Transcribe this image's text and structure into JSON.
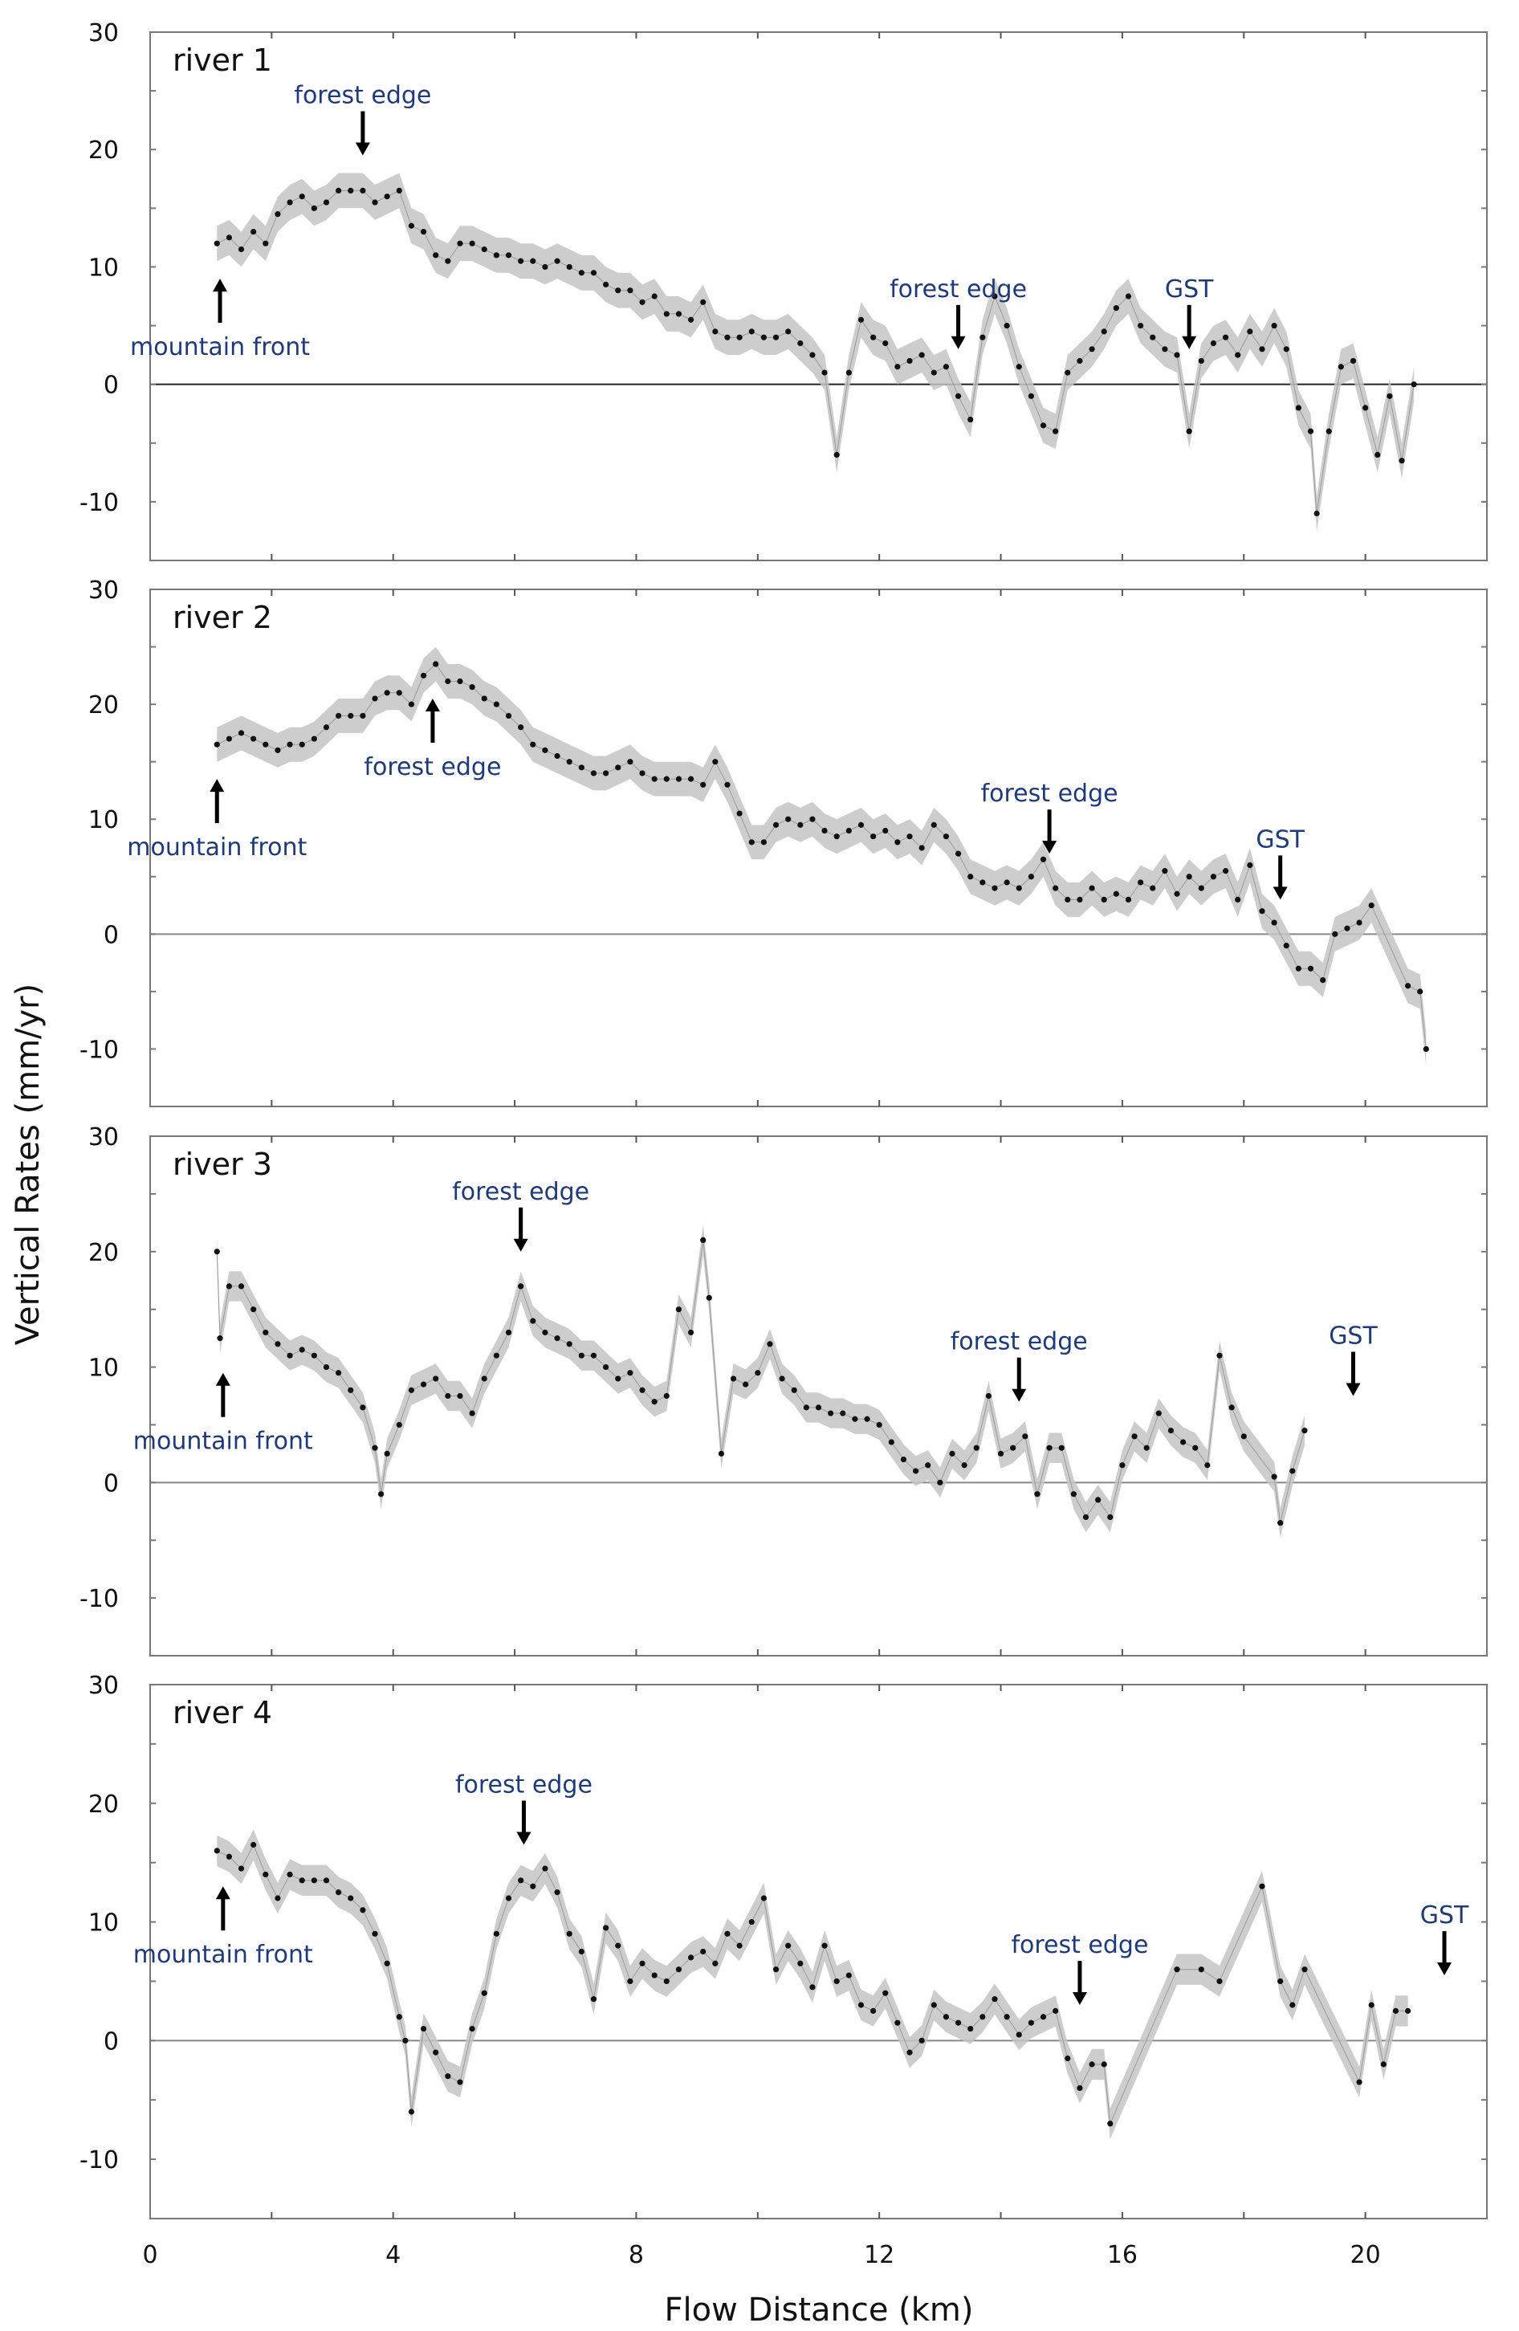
{
  "chart_data": {
    "type": "line",
    "xlabel": "Flow Distance (km)",
    "ylabel": "Vertical Rates (mm/yr)",
    "xlim": [
      0,
      22
    ],
    "ylim": [
      -15,
      30
    ],
    "x_ticks": [
      0,
      4,
      8,
      12,
      16,
      20
    ],
    "x_minor_ticks": [
      2,
      6,
      10,
      14,
      18
    ],
    "y_ticks": [
      -10,
      0,
      10,
      20,
      30
    ],
    "y_minor_ticks": [
      -5,
      5,
      15,
      25
    ],
    "grid": false,
    "zero_line": true,
    "colors": {
      "points": "#111111",
      "band": "#bdbdbd",
      "annotation": "#1f3a7a",
      "arrow": "#000000"
    },
    "panels": [
      {
        "title": "river 1",
        "uncertainty_band_halfwidth": 1.5,
        "annotations": [
          {
            "label": "mountain front",
            "x": 1.15,
            "direction": "up",
            "label_position": "below"
          },
          {
            "label": "forest edge",
            "x": 3.5,
            "direction": "down",
            "label_position": "above"
          },
          {
            "label": "forest edge",
            "x": 13.3,
            "direction": "down",
            "label_position": "above"
          },
          {
            "label": "GST",
            "x": 17.1,
            "direction": "down",
            "label_position": "above"
          }
        ],
        "series": {
          "x": [
            1.1,
            1.3,
            1.5,
            1.7,
            1.9,
            2.1,
            2.3,
            2.5,
            2.7,
            2.9,
            3.1,
            3.3,
            3.5,
            3.7,
            3.9,
            4.1,
            4.3,
            4.5,
            4.7,
            4.9,
            5.1,
            5.3,
            5.5,
            5.7,
            5.9,
            6.1,
            6.3,
            6.5,
            6.7,
            6.9,
            7.1,
            7.3,
            7.5,
            7.7,
            7.9,
            8.1,
            8.3,
            8.5,
            8.7,
            8.9,
            9.1,
            9.3,
            9.5,
            9.7,
            9.9,
            10.1,
            10.3,
            10.5,
            10.7,
            10.9,
            11.1,
            11.3,
            11.5,
            11.7,
            11.9,
            12.1,
            12.3,
            12.5,
            12.7,
            12.9,
            13.1,
            13.3,
            13.5,
            13.7,
            13.9,
            14.1,
            14.3,
            14.5,
            14.7,
            14.9,
            15.1,
            15.3,
            15.5,
            15.7,
            15.9,
            16.1,
            16.3,
            16.5,
            16.7,
            16.9,
            17.1,
            17.3,
            17.5,
            17.7,
            17.9,
            18.1,
            18.3,
            18.5,
            18.7,
            18.9,
            19.1,
            19.2,
            19.4,
            19.6,
            19.8,
            20.0,
            20.2,
            20.4,
            20.6,
            20.8
          ],
          "y": [
            12,
            12.5,
            11.5,
            13,
            12,
            14.5,
            15.5,
            16,
            15,
            15.5,
            16.5,
            16.5,
            16.5,
            15.5,
            16,
            16.5,
            13.5,
            13,
            11,
            10.5,
            12,
            12,
            11.5,
            11,
            11,
            10.5,
            10.5,
            10,
            10.5,
            10,
            9.5,
            9.5,
            8.5,
            8,
            8,
            7,
            7.5,
            6,
            6,
            5.5,
            7,
            4.5,
            4,
            4,
            4.5,
            4,
            4,
            4.5,
            3.5,
            2.5,
            1,
            -6,
            1,
            5.5,
            4,
            3.5,
            1.5,
            2,
            2.5,
            1,
            1.5,
            -1,
            -3,
            4,
            7.5,
            5,
            1.5,
            -1,
            -3.5,
            -4,
            1,
            2,
            3,
            4.5,
            6.5,
            7.5,
            5,
            4,
            3,
            2.5,
            -4,
            2,
            3.5,
            4,
            2.5,
            4.5,
            3,
            5,
            3,
            -2,
            -4,
            -11,
            -4,
            1.5,
            2,
            -2,
            -6,
            -1,
            -6.5,
            0
          ]
        }
      },
      {
        "title": "river 2",
        "uncertainty_band_halfwidth": 1.5,
        "annotations": [
          {
            "label": "mountain front",
            "x": 1.1,
            "direction": "up",
            "label_position": "below"
          },
          {
            "label": "forest edge",
            "x": 4.65,
            "direction": "up",
            "label_position": "below"
          },
          {
            "label": "forest edge",
            "x": 14.8,
            "direction": "down",
            "label_position": "above"
          },
          {
            "label": "GST",
            "x": 18.6,
            "direction": "down",
            "label_position": "above"
          }
        ],
        "series": {
          "x": [
            1.1,
            1.3,
            1.5,
            1.7,
            1.9,
            2.1,
            2.3,
            2.5,
            2.7,
            2.9,
            3.1,
            3.3,
            3.5,
            3.7,
            3.9,
            4.1,
            4.3,
            4.5,
            4.7,
            4.9,
            5.1,
            5.3,
            5.5,
            5.7,
            5.9,
            6.1,
            6.3,
            6.5,
            6.7,
            6.9,
            7.1,
            7.3,
            7.5,
            7.7,
            7.9,
            8.1,
            8.3,
            8.5,
            8.7,
            8.9,
            9.1,
            9.3,
            9.5,
            9.7,
            9.9,
            10.1,
            10.3,
            10.5,
            10.7,
            10.9,
            11.1,
            11.3,
            11.5,
            11.7,
            11.9,
            12.1,
            12.3,
            12.5,
            12.7,
            12.9,
            13.1,
            13.3,
            13.5,
            13.7,
            13.9,
            14.1,
            14.3,
            14.5,
            14.7,
            14.9,
            15.1,
            15.3,
            15.5,
            15.7,
            15.9,
            16.1,
            16.3,
            16.5,
            16.7,
            16.9,
            17.1,
            17.3,
            17.5,
            17.7,
            17.9,
            18.1,
            18.3,
            18.5,
            18.7,
            18.9,
            19.1,
            19.3,
            19.5,
            19.7,
            19.9,
            20.1,
            20.7,
            20.9,
            21.0
          ],
          "y": [
            16.5,
            17,
            17.5,
            17,
            16.5,
            16,
            16.5,
            16.5,
            17,
            18,
            19,
            19,
            19,
            20.5,
            21,
            21,
            20,
            22.5,
            23.5,
            22,
            22,
            21.5,
            20.5,
            20,
            19,
            18,
            16.5,
            16,
            15.5,
            15,
            14.5,
            14,
            14,
            14.5,
            15,
            14,
            13.5,
            13.5,
            13.5,
            13.5,
            13,
            15,
            13,
            10.5,
            8,
            8,
            9.5,
            10,
            9.5,
            10,
            9,
            8.5,
            9,
            9.5,
            8.5,
            9,
            8,
            8.5,
            7.5,
            9.5,
            8.5,
            7,
            5,
            4.5,
            4,
            4.5,
            4,
            5,
            6.5,
            4,
            3,
            3,
            4,
            3,
            3.5,
            3,
            4.5,
            4,
            5.5,
            3.5,
            5,
            4,
            5,
            5.5,
            3,
            6,
            2,
            1,
            -1,
            -3,
            -3,
            -4,
            0,
            0.5,
            1,
            2.5,
            -4.5,
            -5,
            -10
          ]
        }
      },
      {
        "title": "river 3",
        "uncertainty_band_halfwidth": 1.3,
        "annotations": [
          {
            "label": "mountain front",
            "x": 1.2,
            "direction": "up",
            "label_position": "below"
          },
          {
            "label": "forest edge",
            "x": 6.1,
            "direction": "down",
            "label_position": "above"
          },
          {
            "label": "forest edge",
            "x": 14.3,
            "direction": "down",
            "label_position": "above"
          },
          {
            "label": "GST",
            "x": 19.8,
            "direction": "down",
            "label_position": "above"
          }
        ],
        "series": {
          "x": [
            1.1,
            1.15,
            1.3,
            1.5,
            1.7,
            1.9,
            2.1,
            2.3,
            2.5,
            2.7,
            2.9,
            3.1,
            3.3,
            3.5,
            3.7,
            3.8,
            3.9,
            4.1,
            4.3,
            4.5,
            4.7,
            4.9,
            5.1,
            5.3,
            5.5,
            5.7,
            5.9,
            6.1,
            6.3,
            6.5,
            6.7,
            6.9,
            7.1,
            7.3,
            7.5,
            7.7,
            7.9,
            8.1,
            8.3,
            8.5,
            8.7,
            8.9,
            9.1,
            9.2,
            9.4,
            9.6,
            9.8,
            10.0,
            10.2,
            10.4,
            10.6,
            10.8,
            11.0,
            11.2,
            11.4,
            11.6,
            11.8,
            12.0,
            12.2,
            12.4,
            12.6,
            12.8,
            13.0,
            13.2,
            13.4,
            13.6,
            13.8,
            14.0,
            14.2,
            14.4,
            14.6,
            14.8,
            15.0,
            15.2,
            15.4,
            15.6,
            15.8,
            16.0,
            16.2,
            16.4,
            16.6,
            16.8,
            17.0,
            17.2,
            17.4,
            17.6,
            17.8,
            18.0,
            18.5,
            18.6,
            18.8,
            19.0
          ],
          "y": [
            20,
            12.5,
            17,
            17,
            15,
            13,
            12,
            11,
            11.5,
            11,
            10,
            9.5,
            8,
            6.5,
            3,
            -1,
            2.5,
            5,
            8,
            8.5,
            9,
            7.5,
            7.5,
            6,
            9,
            11,
            13,
            17,
            14,
            13,
            12.5,
            12,
            11,
            11,
            10,
            9,
            9.5,
            8,
            7,
            7.5,
            15,
            13,
            21,
            16,
            2.5,
            9,
            8.5,
            9.5,
            12,
            9,
            8,
            6.5,
            6.5,
            6,
            6,
            5.5,
            5.5,
            5,
            3.5,
            2,
            1,
            1.5,
            0,
            2.5,
            1.5,
            3,
            7.5,
            2.5,
            3,
            4,
            -1,
            3,
            3,
            -1,
            -3,
            -1.5,
            -3,
            1.5,
            4,
            3,
            6,
            4.5,
            3.5,
            3,
            1.5,
            11,
            6.5,
            4,
            0.5,
            -3.5,
            1,
            4.5
          ]
        }
      },
      {
        "title": "river 4",
        "uncertainty_band_halfwidth": 1.3,
        "annotations": [
          {
            "label": "mountain front",
            "x": 1.2,
            "direction": "up",
            "label_position": "below"
          },
          {
            "label": "forest edge",
            "x": 6.15,
            "direction": "down",
            "label_position": "above"
          },
          {
            "label": "forest edge",
            "x": 15.3,
            "direction": "down",
            "label_position": "above"
          },
          {
            "label": "GST",
            "x": 21.3,
            "direction": "down",
            "label_position": "above"
          }
        ],
        "series": {
          "x": [
            1.1,
            1.3,
            1.5,
            1.7,
            1.9,
            2.1,
            2.3,
            2.5,
            2.7,
            2.9,
            3.1,
            3.3,
            3.5,
            3.7,
            3.9,
            4.1,
            4.2,
            4.3,
            4.5,
            4.7,
            4.9,
            5.1,
            5.3,
            5.5,
            5.7,
            5.9,
            6.1,
            6.3,
            6.5,
            6.7,
            6.9,
            7.1,
            7.3,
            7.5,
            7.7,
            7.9,
            8.1,
            8.3,
            8.5,
            8.7,
            8.9,
            9.1,
            9.3,
            9.5,
            9.7,
            9.9,
            10.1,
            10.3,
            10.5,
            10.7,
            10.9,
            11.1,
            11.3,
            11.5,
            11.7,
            11.9,
            12.1,
            12.3,
            12.5,
            12.7,
            12.9,
            13.1,
            13.3,
            13.5,
            13.7,
            13.9,
            14.1,
            14.3,
            14.5,
            14.7,
            14.9,
            15.1,
            15.3,
            15.5,
            15.7,
            15.8,
            16.9,
            17.3,
            17.6,
            18.3,
            18.6,
            18.8,
            19.0,
            19.9,
            20.1,
            20.3,
            20.5,
            20.7
          ],
          "y": [
            16,
            15.5,
            14.5,
            16.5,
            14,
            12,
            14,
            13.5,
            13.5,
            13.5,
            12.5,
            12,
            11,
            9,
            6.5,
            2,
            0,
            -6,
            1,
            -1,
            -3,
            -3.5,
            1,
            4,
            9,
            12,
            13.5,
            13,
            14.5,
            12.5,
            9,
            7.5,
            3.5,
            9.5,
            8,
            5,
            6.5,
            5.5,
            5,
            6,
            7,
            7.5,
            6.5,
            9,
            8,
            10,
            12,
            6,
            8,
            6.5,
            4.5,
            8,
            5,
            5.5,
            3,
            2.5,
            4,
            1.5,
            -1,
            0,
            3,
            2,
            1.5,
            1,
            2,
            3.5,
            2,
            0.5,
            1.5,
            2,
            2.5,
            -1.5,
            -4,
            -2,
            -2,
            -7,
            6,
            6,
            5,
            13,
            5,
            3,
            6,
            -3.5,
            3,
            -2,
            2.5,
            2.5
          ]
        }
      }
    ]
  }
}
